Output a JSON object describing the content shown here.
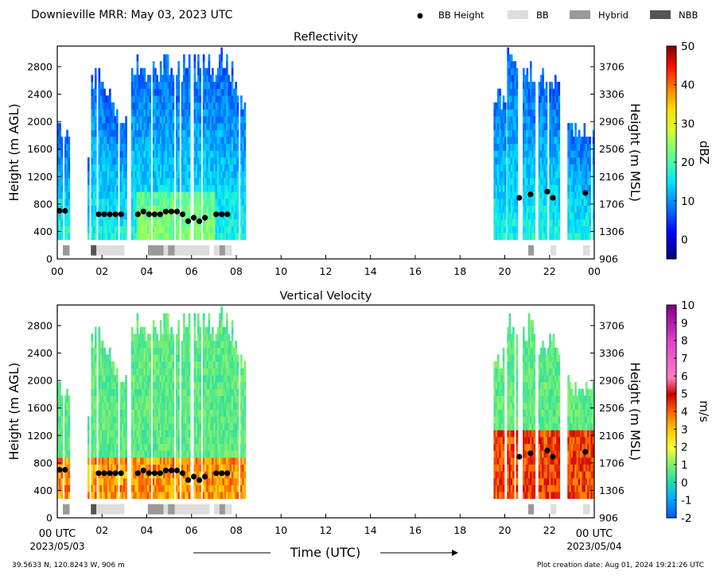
{
  "header": {
    "title": "Downieville MRR:  May 03, 2023 UTC",
    "legend": [
      {
        "label": "BB Height",
        "kind": "dot",
        "color": "#000000"
      },
      {
        "label": "BB",
        "kind": "box",
        "color": "#dddddd"
      },
      {
        "label": "Hybrid",
        "kind": "box",
        "color": "#999999"
      },
      {
        "label": "NBB",
        "kind": "box",
        "color": "#555555"
      }
    ]
  },
  "footer": {
    "location": "39.5633 N, 120.8243 W, 906 m",
    "creation": "Plot creation date: Aug 01, 2024 19:21:26 UTC",
    "xlabel": "Time (UTC)",
    "start_time": "00 UTC",
    "start_date": "2023/05/03",
    "end_time": "00 UTC",
    "end_date": "2023/05/04"
  },
  "chart_data": [
    {
      "type": "heatmap",
      "title": "Reflectivity",
      "ylabel_left": "Height (m AGL)",
      "ylabel_right": "Height (m MSL)",
      "yticks_left": [
        0,
        400,
        800,
        1200,
        1600,
        2000,
        2400,
        2800
      ],
      "yticks_right": [
        906,
        1306,
        1706,
        2106,
        2506,
        2906,
        3306,
        3706
      ],
      "xticks": [
        "00",
        "02",
        "04",
        "06",
        "08",
        "10",
        "12",
        "14",
        "16",
        "18",
        "20",
        "22",
        "00"
      ],
      "xlim": [
        0,
        24
      ],
      "ylim": [
        0,
        3100
      ],
      "colorbar": {
        "label": "dBZ",
        "min": -5,
        "max": 50,
        "ticks": [
          0,
          10,
          20,
          30,
          40,
          50
        ]
      },
      "bb_height": [
        {
          "t": 0.1,
          "h": 700
        },
        {
          "t": 0.35,
          "h": 700
        },
        {
          "t": 1.85,
          "h": 650
        },
        {
          "t": 2.1,
          "h": 650
        },
        {
          "t": 2.35,
          "h": 650
        },
        {
          "t": 2.6,
          "h": 650
        },
        {
          "t": 2.85,
          "h": 650
        },
        {
          "t": 3.6,
          "h": 650
        },
        {
          "t": 3.85,
          "h": 690
        },
        {
          "t": 4.1,
          "h": 650
        },
        {
          "t": 4.35,
          "h": 650
        },
        {
          "t": 4.6,
          "h": 650
        },
        {
          "t": 4.85,
          "h": 690
        },
        {
          "t": 5.1,
          "h": 690
        },
        {
          "t": 5.35,
          "h": 690
        },
        {
          "t": 5.6,
          "h": 650
        },
        {
          "t": 5.85,
          "h": 550
        },
        {
          "t": 6.1,
          "h": 600
        },
        {
          "t": 6.35,
          "h": 550
        },
        {
          "t": 6.6,
          "h": 600
        },
        {
          "t": 7.1,
          "h": 650
        },
        {
          "t": 7.35,
          "h": 650
        },
        {
          "t": 7.6,
          "h": 650
        },
        {
          "t": 20.65,
          "h": 890
        },
        {
          "t": 21.15,
          "h": 940
        },
        {
          "t": 21.9,
          "h": 980
        },
        {
          "t": 22.15,
          "h": 890
        },
        {
          "t": 23.6,
          "h": 960
        }
      ],
      "bb_class": [
        {
          "start": 0.25,
          "end": 0.55,
          "class": "Hybrid"
        },
        {
          "start": 1.5,
          "end": 1.75,
          "class": "NBB"
        },
        {
          "start": 1.75,
          "end": 3.0,
          "class": "BB"
        },
        {
          "start": 4.05,
          "end": 4.75,
          "class": "Hybrid"
        },
        {
          "start": 4.75,
          "end": 4.95,
          "class": "BB"
        },
        {
          "start": 4.95,
          "end": 5.25,
          "class": "Hybrid"
        },
        {
          "start": 5.25,
          "end": 6.8,
          "class": "BB"
        },
        {
          "start": 7.0,
          "end": 7.25,
          "class": "BB"
        },
        {
          "start": 7.25,
          "end": 7.5,
          "class": "Hybrid"
        },
        {
          "start": 7.5,
          "end": 7.8,
          "class": "BB"
        },
        {
          "start": 21.05,
          "end": 21.3,
          "class": "Hybrid"
        },
        {
          "start": 22.05,
          "end": 22.3,
          "class": "BB"
        },
        {
          "start": 23.5,
          "end": 23.8,
          "class": "BB"
        }
      ]
    },
    {
      "type": "heatmap",
      "title": "Vertical Velocity",
      "ylabel_left": "Height (m AGL)",
      "ylabel_right": "Height (m MSL)",
      "yticks_left": [
        0,
        400,
        800,
        1200,
        1600,
        2000,
        2400,
        2800
      ],
      "yticks_right": [
        906,
        1306,
        1706,
        2106,
        2506,
        2906,
        3306,
        3706
      ],
      "xticks": [
        "00",
        "02",
        "04",
        "06",
        "08",
        "10",
        "12",
        "14",
        "16",
        "18",
        "20",
        "22",
        "00"
      ],
      "xlim": [
        0,
        24
      ],
      "ylim": [
        0,
        3100
      ],
      "colorbar": {
        "label": "m/s",
        "min": -2,
        "max": 10,
        "ticks": [
          -2,
          -1,
          0,
          1,
          2,
          3,
          4,
          5,
          6,
          7,
          8,
          9,
          10
        ]
      },
      "bb_height": [
        {
          "t": 0.1,
          "h": 700
        },
        {
          "t": 0.35,
          "h": 700
        },
        {
          "t": 1.85,
          "h": 650
        },
        {
          "t": 2.1,
          "h": 650
        },
        {
          "t": 2.35,
          "h": 650
        },
        {
          "t": 2.6,
          "h": 650
        },
        {
          "t": 2.85,
          "h": 650
        },
        {
          "t": 3.6,
          "h": 650
        },
        {
          "t": 3.85,
          "h": 690
        },
        {
          "t": 4.1,
          "h": 650
        },
        {
          "t": 4.35,
          "h": 650
        },
        {
          "t": 4.6,
          "h": 650
        },
        {
          "t": 4.85,
          "h": 690
        },
        {
          "t": 5.1,
          "h": 690
        },
        {
          "t": 5.35,
          "h": 690
        },
        {
          "t": 5.6,
          "h": 650
        },
        {
          "t": 5.85,
          "h": 550
        },
        {
          "t": 6.1,
          "h": 600
        },
        {
          "t": 6.35,
          "h": 550
        },
        {
          "t": 6.6,
          "h": 600
        },
        {
          "t": 7.1,
          "h": 650
        },
        {
          "t": 7.35,
          "h": 650
        },
        {
          "t": 7.6,
          "h": 650
        },
        {
          "t": 20.65,
          "h": 890
        },
        {
          "t": 21.15,
          "h": 940
        },
        {
          "t": 21.9,
          "h": 980
        },
        {
          "t": 22.15,
          "h": 890
        },
        {
          "t": 23.6,
          "h": 960
        }
      ],
      "bb_class": [
        {
          "start": 0.25,
          "end": 0.55,
          "class": "Hybrid"
        },
        {
          "start": 1.5,
          "end": 1.75,
          "class": "NBB"
        },
        {
          "start": 1.75,
          "end": 3.0,
          "class": "BB"
        },
        {
          "start": 4.05,
          "end": 4.75,
          "class": "Hybrid"
        },
        {
          "start": 4.75,
          "end": 4.95,
          "class": "BB"
        },
        {
          "start": 4.95,
          "end": 5.25,
          "class": "Hybrid"
        },
        {
          "start": 5.25,
          "end": 6.8,
          "class": "BB"
        },
        {
          "start": 7.0,
          "end": 7.25,
          "class": "BB"
        },
        {
          "start": 7.25,
          "end": 7.5,
          "class": "Hybrid"
        },
        {
          "start": 7.5,
          "end": 7.8,
          "class": "BB"
        },
        {
          "start": 21.05,
          "end": 21.3,
          "class": "Hybrid"
        },
        {
          "start": 22.05,
          "end": 22.3,
          "class": "BB"
        },
        {
          "start": 23.5,
          "end": 23.8,
          "class": "BB"
        }
      ]
    }
  ]
}
